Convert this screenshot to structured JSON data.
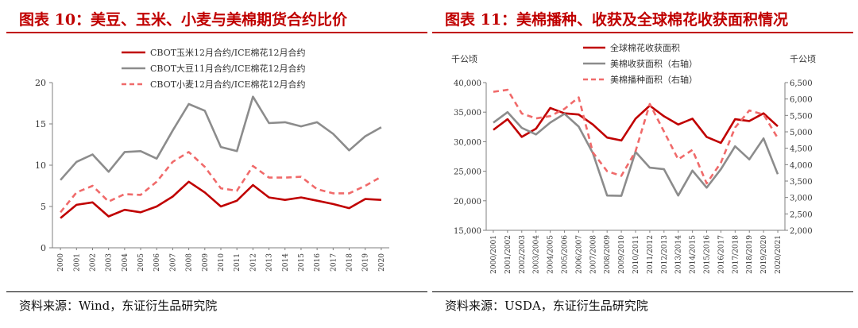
{
  "colors": {
    "accent": "#c00000",
    "red_series": "#c00000",
    "gray_series": "#8c8c8c",
    "pink_series": "#f06a6a"
  },
  "left": {
    "title": "图表 10：美豆、玉米、小麦与美棉期货合约比价",
    "source": "资料来源：Wind，东证衍生品研究院"
  },
  "right": {
    "title": "图表 11：美棉播种、收获及全球棉花收获面积情况",
    "source": "资料来源：USDA，东证衍生品研究院"
  },
  "chart_data": [
    {
      "type": "line",
      "title": "美豆、玉米、小麦与美棉期货合约比价",
      "categories": [
        "2000",
        "2001",
        "2002",
        "2003",
        "2004",
        "2005",
        "2006",
        "2007",
        "2008",
        "2009",
        "2010",
        "2011",
        "2012",
        "2013",
        "2014",
        "2015",
        "2016",
        "2017",
        "2018",
        "2019",
        "2020"
      ],
      "ylim": [
        0,
        20
      ],
      "yticks": [
        0,
        5,
        10,
        15,
        20
      ],
      "legend_position": "top-center",
      "series": [
        {
          "name": "CBOT玉米12月合约/ICE棉花12月合约",
          "color": "#c00000",
          "dash": "solid",
          "values": [
            3.6,
            5.2,
            5.5,
            3.8,
            4.6,
            4.3,
            5.0,
            6.2,
            8.0,
            6.7,
            5.0,
            5.7,
            7.6,
            6.1,
            5.8,
            6.1,
            5.7,
            5.3,
            4.8,
            5.9,
            5.8
          ]
        },
        {
          "name": "CBOT大豆11月合约/ICE棉花12月合约",
          "color": "#8c8c8c",
          "dash": "solid",
          "values": [
            8.2,
            10.4,
            11.3,
            9.2,
            11.6,
            11.7,
            10.8,
            14.2,
            17.4,
            16.6,
            12.2,
            11.7,
            18.3,
            15.1,
            15.2,
            14.7,
            15.2,
            13.8,
            11.8,
            13.5,
            14.6
          ]
        },
        {
          "name": "CBOT小麦12月合约/ICE棉花12月合约",
          "color": "#f06a6a",
          "dash": "dash",
          "values": [
            4.3,
            6.7,
            7.5,
            5.6,
            6.5,
            6.4,
            8.0,
            10.4,
            11.6,
            9.8,
            7.2,
            6.9,
            9.9,
            8.5,
            8.5,
            8.6,
            7.1,
            6.6,
            6.6,
            7.5,
            8.6
          ]
        }
      ]
    },
    {
      "type": "line",
      "title": "美棉播种、收获及全球棉花收获面积情况",
      "categories": [
        "2000/2001",
        "2001/2002",
        "2002/2003",
        "2003/2004",
        "2004/2005",
        "2005/2006",
        "2006/2007",
        "2007/2008",
        "2008/2009",
        "2009/2010",
        "2010/2011",
        "2011/2012",
        "2012/2013",
        "2013/2014",
        "2014/2015",
        "2015/2016",
        "2016/2017",
        "2017/2018",
        "2018/2019",
        "2019/2020",
        "2020/2021"
      ],
      "ylabel_left": "千公顷",
      "ylabel_right": "千公顷",
      "ylim_left": [
        15000,
        40000
      ],
      "yticks_left": [
        "15,000",
        "20,000",
        "25,000",
        "30,000",
        "35,000",
        "40,000"
      ],
      "ylim_right": [
        2000,
        6500
      ],
      "yticks_right": [
        "2,000",
        "2,500",
        "3,000",
        "3,500",
        "4,000",
        "4,500",
        "5,000",
        "5,500",
        "6,000",
        "6,500"
      ],
      "legend_position": "top-center",
      "series": [
        {
          "name": "全球棉花收获面积",
          "axis": "left",
          "color": "#c00000",
          "dash": "solid",
          "values": [
            32000,
            33800,
            30800,
            32200,
            35700,
            34800,
            34600,
            32900,
            30700,
            30200,
            33900,
            36100,
            34300,
            32900,
            33900,
            30800,
            29800,
            33800,
            33500,
            34800,
            32600
          ]
        },
        {
          "name": "美棉收获面积（右轴）",
          "axis": "right",
          "color": "#8c8c8c",
          "dash": "solid",
          "values": [
            5280,
            5600,
            5120,
            4920,
            5280,
            5550,
            5160,
            4350,
            3060,
            3050,
            4390,
            3910,
            3860,
            3060,
            3820,
            3300,
            3860,
            4560,
            4160,
            4800,
            3710
          ]
        },
        {
          "name": "美棉播种面积（右轴）",
          "axis": "right",
          "color": "#f06a6a",
          "dash": "dash",
          "values": [
            6220,
            6280,
            5560,
            5410,
            5480,
            5700,
            6050,
            4370,
            3800,
            3660,
            4410,
            5850,
            5010,
            4160,
            4450,
            3430,
            4060,
            5130,
            5650,
            5530,
            4810
          ]
        }
      ]
    }
  ]
}
